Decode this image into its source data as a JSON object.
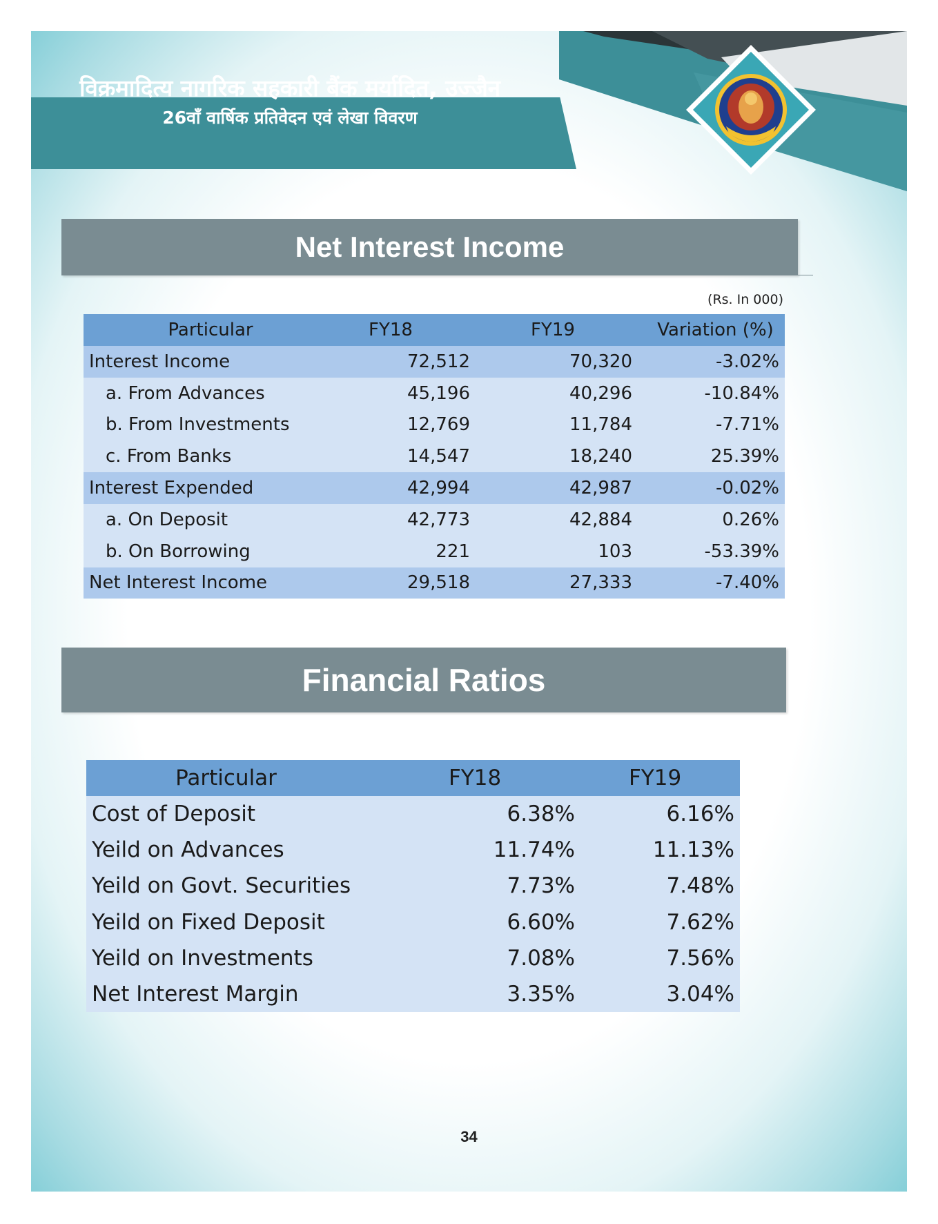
{
  "header": {
    "title": "विक्रमादित्य नागरिक सहकारी बैंक मर्यादित, उज्जैन",
    "subtitle": "26वाँ वार्षिक प्रतिवेदन एवं लेखा विवरण"
  },
  "colors": {
    "teal_band": "#3d8f98",
    "banner_grey": "#7a8c92",
    "table_header": "#6ca0d4",
    "row_main": "#adc9ec",
    "row_sub": "#d4e3f5"
  },
  "logo": {
    "icon": "bank-emblem-logo"
  },
  "net_interest_income": {
    "title": "Net Interest Income",
    "unit_note": "(Rs. In 000)",
    "columns": [
      "Particular",
      "FY18",
      "FY19",
      "Variation (%)"
    ],
    "rows": [
      {
        "label": "Interest Income",
        "fy18": "72,512",
        "fy19": "70,320",
        "variation": "-3.02%"
      },
      {
        "label": "a. From Advances",
        "fy18": "45,196",
        "fy19": "40,296",
        "variation": "-10.84%"
      },
      {
        "label": "b. From Investments",
        "fy18": "12,769",
        "fy19": "11,784",
        "variation": "-7.71%"
      },
      {
        "label": "c. From Banks",
        "fy18": "14,547",
        "fy19": "18,240",
        "variation": "25.39%"
      },
      {
        "label": "Interest Expended",
        "fy18": "42,994",
        "fy19": "42,987",
        "variation": "-0.02%"
      },
      {
        "label": "a. On Deposit",
        "fy18": "42,773",
        "fy19": "42,884",
        "variation": "0.26%"
      },
      {
        "label": "b. On Borrowing",
        "fy18": "221",
        "fy19": "103",
        "variation": "-53.39%"
      },
      {
        "label": "Net Interest Income",
        "fy18": "29,518",
        "fy19": "27,333",
        "variation": "-7.40%"
      }
    ]
  },
  "financial_ratios": {
    "title": "Financial Ratios",
    "columns": [
      "Particular",
      "FY18",
      "FY19"
    ],
    "rows": [
      {
        "label": "Cost of Deposit",
        "fy18": "6.38%",
        "fy19": "6.16%"
      },
      {
        "label": "Yeild on Advances",
        "fy18": "11.74%",
        "fy19": "11.13%"
      },
      {
        "label": "Yeild on Govt. Securities",
        "fy18": "7.73%",
        "fy19": "7.48%"
      },
      {
        "label": "Yeild on Fixed Deposit",
        "fy18": "6.60%",
        "fy19": "7.62%"
      },
      {
        "label": "Yeild on Investments",
        "fy18": "7.08%",
        "fy19": "7.56%"
      },
      {
        "label": "Net Interest Margin",
        "fy18": "3.35%",
        "fy19": "3.04%"
      }
    ]
  },
  "page_number": "34"
}
